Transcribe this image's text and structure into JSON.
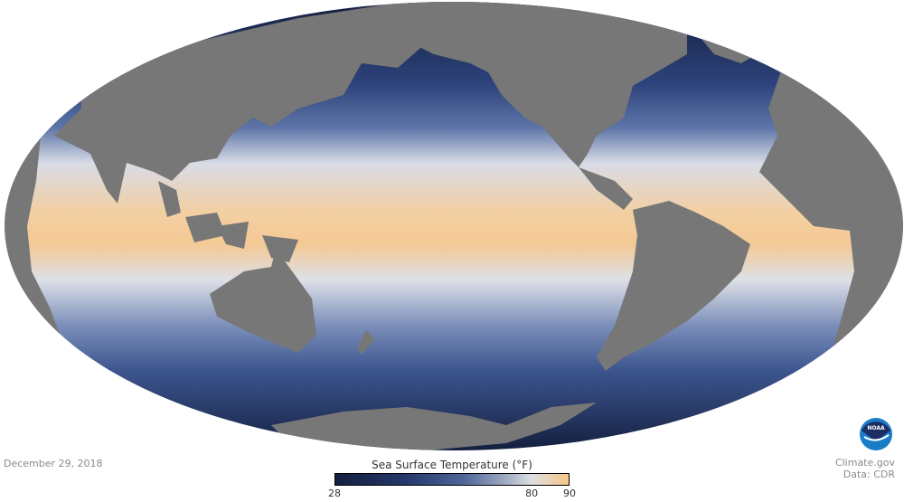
{
  "map": {
    "projection": "Mollweide",
    "variable": "Sea Surface Temperature",
    "land_color": "#777777",
    "cold_color": "#141f3f",
    "warm_color": "#f6c689"
  },
  "date": "December 29, 2018",
  "legend": {
    "title": "Sea Surface Temperature (°F)",
    "min_label": "28",
    "mid_label": "80",
    "max_label": "90",
    "min": 28,
    "mid": 80,
    "max": 90
  },
  "credit": {
    "logo_text": "NOAA",
    "site": "Climate.gov",
    "source": "Data: CDR"
  }
}
